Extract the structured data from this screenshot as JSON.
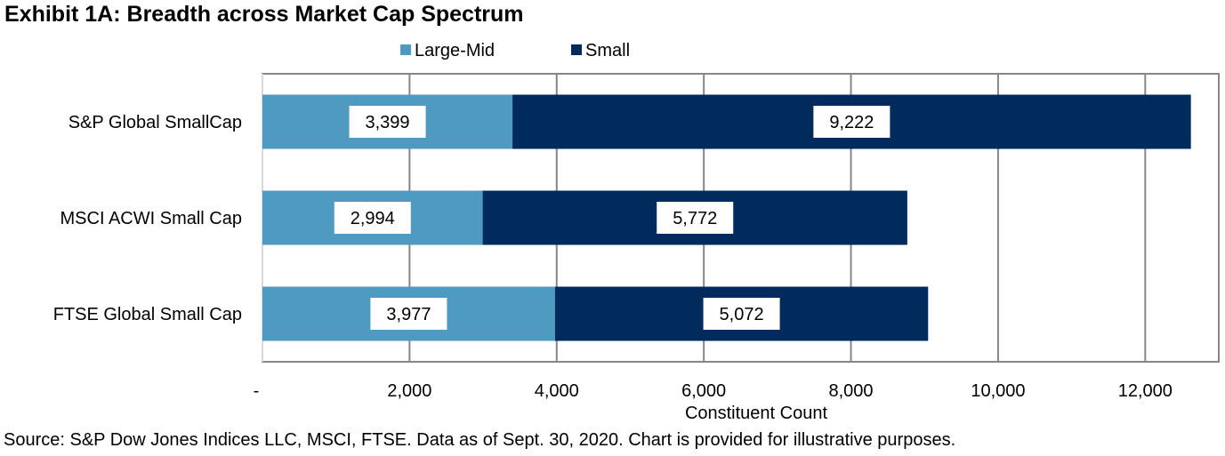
{
  "chart_data": {
    "type": "bar",
    "orientation": "horizontal",
    "stacked": true,
    "title": "Exhibit 1A: Breadth across Market Cap Spectrum",
    "categories": [
      "S&P Global SmallCap",
      "MSCI ACWI Small Cap",
      "FTSE Global Small Cap"
    ],
    "series": [
      {
        "name": "Large-Mid",
        "color": "#4f9ac1",
        "values": [
          3399,
          2994,
          3977
        ],
        "labels": [
          "3,399",
          "2,994",
          "3,977"
        ]
      },
      {
        "name": "Small",
        "color": "#002b5c",
        "values": [
          9222,
          5772,
          5072
        ],
        "labels": [
          "9,222",
          "5,772",
          "5,072"
        ]
      }
    ],
    "xlabel": "Constituent Count",
    "ylabel": "",
    "xlim": [
      0,
      13000
    ],
    "xticks": [
      0,
      2000,
      4000,
      6000,
      8000,
      10000,
      12000
    ],
    "xtick_labels": [
      "-",
      "2,000",
      "4,000",
      "6,000",
      "8,000",
      "10,000",
      "12,000"
    ],
    "grid": true,
    "legend": "top-center"
  },
  "source": "Source: S&P Dow Jones Indices LLC, MSCI, FTSE. Data as of Sept. 30, 2020. Chart is provided for illustrative purposes."
}
